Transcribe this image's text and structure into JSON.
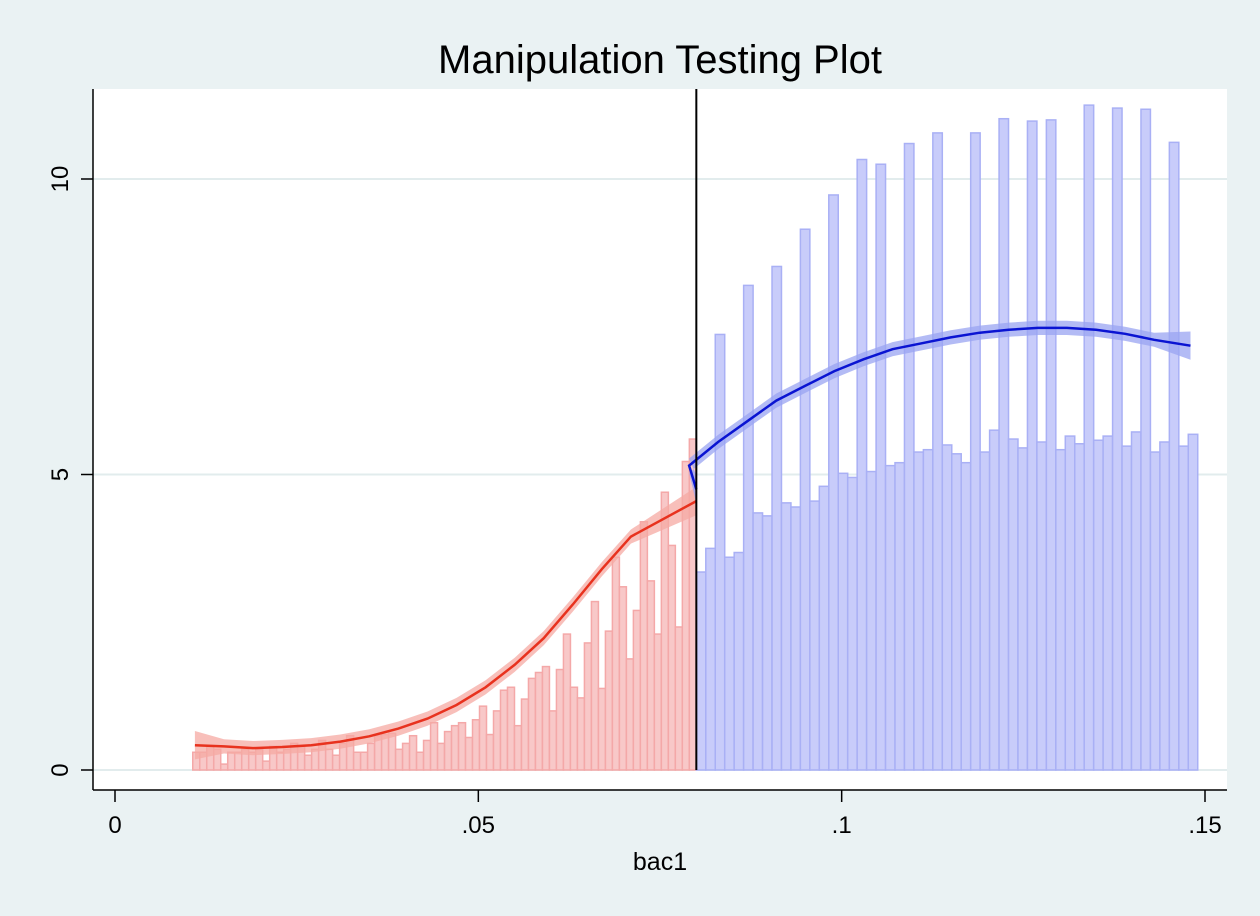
{
  "chart_data": {
    "type": "bar",
    "title": "Manipulation Testing Plot",
    "xlabel": "bac1",
    "ylabel": "",
    "xlim": [
      0,
      0.15
    ],
    "ylim": [
      0,
      10
    ],
    "x_ticks": [
      {
        "value": 0,
        "label": "0"
      },
      {
        "value": 0.05,
        "label": ".05"
      },
      {
        "value": 0.1,
        "label": ".1"
      },
      {
        "value": 0.15,
        "label": ".15"
      }
    ],
    "y_ticks": [
      {
        "value": 0,
        "label": "0"
      },
      {
        "value": 5,
        "label": "5"
      },
      {
        "value": 10,
        "label": "10"
      }
    ],
    "grid": true,
    "legend": "none",
    "cutoff": 0.08,
    "bin_width": 0.001,
    "colors": {
      "left_bar_fill": "#f8c8c8",
      "left_bar_stroke": "#f4a8a8",
      "left_line": "#e8321e",
      "left_band": "#f5a9a3",
      "right_bar_fill": "#c8ccfa",
      "right_bar_stroke": "#a9b0f5",
      "right_line": "#0a14d2",
      "right_band": "#9aa4f2",
      "cutoff_line": "#000000",
      "grid": "#e2eced",
      "plot_bg": "#ffffff",
      "page_bg": "#eaf2f3"
    },
    "left_bars": [
      {
        "x": 0.011,
        "y": 0.3
      },
      {
        "x": 0.012,
        "y": 0.3
      },
      {
        "x": 0.013,
        "y": 0.4
      },
      {
        "x": 0.014,
        "y": 0.35
      },
      {
        "x": 0.015,
        "y": 0.1
      },
      {
        "x": 0.016,
        "y": 0.3
      },
      {
        "x": 0.017,
        "y": 0.3
      },
      {
        "x": 0.018,
        "y": 0.35
      },
      {
        "x": 0.019,
        "y": 0.3
      },
      {
        "x": 0.02,
        "y": 0.35
      },
      {
        "x": 0.021,
        "y": 0.15
      },
      {
        "x": 0.022,
        "y": 0.4
      },
      {
        "x": 0.023,
        "y": 0.3
      },
      {
        "x": 0.024,
        "y": 0.35
      },
      {
        "x": 0.025,
        "y": 0.45
      },
      {
        "x": 0.026,
        "y": 0.4
      },
      {
        "x": 0.027,
        "y": 0.25
      },
      {
        "x": 0.028,
        "y": 0.35
      },
      {
        "x": 0.029,
        "y": 0.5
      },
      {
        "x": 0.03,
        "y": 0.35
      },
      {
        "x": 0.031,
        "y": 0.25
      },
      {
        "x": 0.032,
        "y": 0.45
      },
      {
        "x": 0.033,
        "y": 0.58
      },
      {
        "x": 0.034,
        "y": 0.3
      },
      {
        "x": 0.035,
        "y": 0.3
      },
      {
        "x": 0.036,
        "y": 0.45
      },
      {
        "x": 0.037,
        "y": 0.58
      },
      {
        "x": 0.038,
        "y": 0.6
      },
      {
        "x": 0.039,
        "y": 0.62
      },
      {
        "x": 0.04,
        "y": 0.35
      },
      {
        "x": 0.041,
        "y": 0.45
      },
      {
        "x": 0.042,
        "y": 0.58
      },
      {
        "x": 0.043,
        "y": 0.3
      },
      {
        "x": 0.044,
        "y": 0.5
      },
      {
        "x": 0.045,
        "y": 0.8
      },
      {
        "x": 0.046,
        "y": 0.45
      },
      {
        "x": 0.047,
        "y": 0.65
      },
      {
        "x": 0.048,
        "y": 0.75
      },
      {
        "x": 0.049,
        "y": 0.8
      },
      {
        "x": 0.05,
        "y": 0.55
      },
      {
        "x": 0.051,
        "y": 0.85
      },
      {
        "x": 0.052,
        "y": 1.08
      },
      {
        "x": 0.053,
        "y": 0.6
      },
      {
        "x": 0.054,
        "y": 1.0
      },
      {
        "x": 0.055,
        "y": 1.35
      },
      {
        "x": 0.056,
        "y": 1.4
      },
      {
        "x": 0.057,
        "y": 0.75
      },
      {
        "x": 0.058,
        "y": 1.2
      },
      {
        "x": 0.059,
        "y": 1.55
      },
      {
        "x": 0.06,
        "y": 1.65
      },
      {
        "x": 0.061,
        "y": 1.75
      },
      {
        "x": 0.062,
        "y": 1.0
      },
      {
        "x": 0.063,
        "y": 1.7
      },
      {
        "x": 0.064,
        "y": 2.3
      },
      {
        "x": 0.065,
        "y": 1.4
      },
      {
        "x": 0.066,
        "y": 1.22
      },
      {
        "x": 0.067,
        "y": 2.15
      },
      {
        "x": 0.068,
        "y": 2.85
      },
      {
        "x": 0.069,
        "y": 1.38
      },
      {
        "x": 0.07,
        "y": 2.35
      },
      {
        "x": 0.071,
        "y": 3.6
      },
      {
        "x": 0.072,
        "y": 3.1
      },
      {
        "x": 0.073,
        "y": 1.88
      },
      {
        "x": 0.074,
        "y": 2.7
      },
      {
        "x": 0.075,
        "y": 4.2
      },
      {
        "x": 0.076,
        "y": 3.2
      },
      {
        "x": 0.077,
        "y": 2.3
      },
      {
        "x": 0.078,
        "y": 4.7
      },
      {
        "x": 0.079,
        "y": 3.8
      },
      {
        "x": 0.08,
        "y": 2.42
      },
      {
        "x": 0.081,
        "y": 5.22
      },
      {
        "x": 0.082,
        "y": 5.6
      }
    ],
    "right_bars": [
      {
        "x": 0.083,
        "y": 3.35
      },
      {
        "x": 0.084,
        "y": 3.75
      },
      {
        "x": 0.085,
        "y": 7.37
      },
      {
        "x": 0.086,
        "y": 3.6
      },
      {
        "x": 0.087,
        "y": 3.68
      },
      {
        "x": 0.088,
        "y": 8.2
      },
      {
        "x": 0.089,
        "y": 4.35
      },
      {
        "x": 0.09,
        "y": 4.3
      },
      {
        "x": 0.091,
        "y": 8.52
      },
      {
        "x": 0.092,
        "y": 4.52
      },
      {
        "x": 0.093,
        "y": 4.45
      },
      {
        "x": 0.094,
        "y": 9.15
      },
      {
        "x": 0.095,
        "y": 4.55
      },
      {
        "x": 0.096,
        "y": 4.8
      },
      {
        "x": 0.097,
        "y": 9.73
      },
      {
        "x": 0.098,
        "y": 5.02
      },
      {
        "x": 0.099,
        "y": 4.95
      },
      {
        "x": 0.1,
        "y": 10.33
      },
      {
        "x": 0.101,
        "y": 5.05
      },
      {
        "x": 0.102,
        "y": 10.25
      },
      {
        "x": 0.103,
        "y": 5.15
      },
      {
        "x": 0.104,
        "y": 5.2
      },
      {
        "x": 0.105,
        "y": 10.6
      },
      {
        "x": 0.106,
        "y": 5.38
      },
      {
        "x": 0.107,
        "y": 5.42
      },
      {
        "x": 0.108,
        "y": 10.78
      },
      {
        "x": 0.109,
        "y": 5.5
      },
      {
        "x": 0.11,
        "y": 5.35
      },
      {
        "x": 0.111,
        "y": 5.2
      },
      {
        "x": 0.112,
        "y": 10.78
      },
      {
        "x": 0.113,
        "y": 5.38
      },
      {
        "x": 0.114,
        "y": 5.75
      },
      {
        "x": 0.115,
        "y": 11.02
      },
      {
        "x": 0.116,
        "y": 5.6
      },
      {
        "x": 0.117,
        "y": 5.45
      },
      {
        "x": 0.118,
        "y": 10.98
      },
      {
        "x": 0.119,
        "y": 5.55
      },
      {
        "x": 0.12,
        "y": 11.0
      },
      {
        "x": 0.121,
        "y": 5.42
      },
      {
        "x": 0.122,
        "y": 5.65
      },
      {
        "x": 0.123,
        "y": 5.52
      },
      {
        "x": 0.124,
        "y": 11.25
      },
      {
        "x": 0.125,
        "y": 5.58
      },
      {
        "x": 0.126,
        "y": 5.65
      },
      {
        "x": 0.127,
        "y": 11.2
      },
      {
        "x": 0.128,
        "y": 5.48
      },
      {
        "x": 0.129,
        "y": 5.72
      },
      {
        "x": 0.13,
        "y": 11.18
      },
      {
        "x": 0.131,
        "y": 5.38
      },
      {
        "x": 0.132,
        "y": 5.55
      },
      {
        "x": 0.133,
        "y": 10.62
      },
      {
        "x": 0.134,
        "y": 5.48
      },
      {
        "x": 0.135,
        "y": 5.68
      }
    ],
    "left_fit": [
      {
        "x": 0.011,
        "y": 0.42
      },
      {
        "x": 0.015,
        "y": 0.4
      },
      {
        "x": 0.019,
        "y": 0.37
      },
      {
        "x": 0.023,
        "y": 0.39
      },
      {
        "x": 0.027,
        "y": 0.42
      },
      {
        "x": 0.031,
        "y": 0.48
      },
      {
        "x": 0.035,
        "y": 0.57
      },
      {
        "x": 0.039,
        "y": 0.7
      },
      {
        "x": 0.043,
        "y": 0.87
      },
      {
        "x": 0.047,
        "y": 1.1
      },
      {
        "x": 0.051,
        "y": 1.4
      },
      {
        "x": 0.055,
        "y": 1.78
      },
      {
        "x": 0.059,
        "y": 2.23
      },
      {
        "x": 0.063,
        "y": 2.8
      },
      {
        "x": 0.067,
        "y": 3.4
      },
      {
        "x": 0.071,
        "y": 3.95
      },
      {
        "x": 0.075,
        "y": 4.55
      }
    ],
    "right_fit": [
      {
        "x": 0.075,
        "y": 4.75
      },
      {
        "x": 0.079,
        "y": 5.15
      },
      {
        "x": 0.083,
        "y": 5.55
      },
      {
        "x": 0.087,
        "y": 5.9
      },
      {
        "x": 0.091,
        "y": 6.25
      },
      {
        "x": 0.095,
        "y": 6.5
      },
      {
        "x": 0.099,
        "y": 6.75
      },
      {
        "x": 0.103,
        "y": 6.95
      },
      {
        "x": 0.107,
        "y": 7.12
      },
      {
        "x": 0.111,
        "y": 7.22
      },
      {
        "x": 0.115,
        "y": 7.32
      },
      {
        "x": 0.119,
        "y": 7.4
      },
      {
        "x": 0.123,
        "y": 7.45
      },
      {
        "x": 0.127,
        "y": 7.48
      },
      {
        "x": 0.131,
        "y": 7.48
      },
      {
        "x": 0.135,
        "y": 7.45
      },
      {
        "x": 0.139,
        "y": 7.38
      },
      {
        "x": 0.143,
        "y": 7.28
      },
      {
        "x": 0.148,
        "y": 7.18
      }
    ]
  }
}
